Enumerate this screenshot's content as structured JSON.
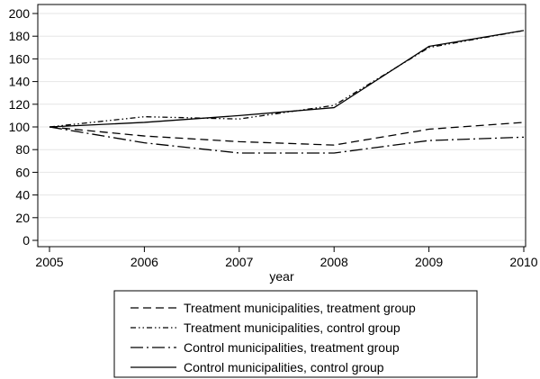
{
  "chart_data": {
    "type": "line",
    "title": "",
    "xlabel": "year",
    "ylabel": "",
    "x": [
      2005,
      2006,
      2007,
      2008,
      2009,
      2010
    ],
    "xlim": [
      2005,
      2010
    ],
    "ylim": [
      0,
      205
    ],
    "yticks": [
      0,
      20,
      40,
      60,
      80,
      100,
      120,
      140,
      160,
      180,
      200
    ],
    "grid": true,
    "legend_position": "bottom",
    "series": [
      {
        "name": "Treatment municipalities, treatment group",
        "dash": "dashed",
        "values": [
          100,
          92,
          87,
          84,
          98,
          104
        ]
      },
      {
        "name": "Treatment municipalities, control group",
        "dash": "dash-dot-dot",
        "values": [
          100,
          109,
          107,
          119,
          170,
          185
        ]
      },
      {
        "name": "Control municipalities, treatment group",
        "dash": "long-dash-dot",
        "values": [
          100,
          86,
          77,
          77,
          88,
          91
        ]
      },
      {
        "name": "Control municipalities, control group",
        "dash": "solid",
        "values": [
          100,
          104,
          110,
          117,
          171,
          185
        ]
      }
    ]
  }
}
